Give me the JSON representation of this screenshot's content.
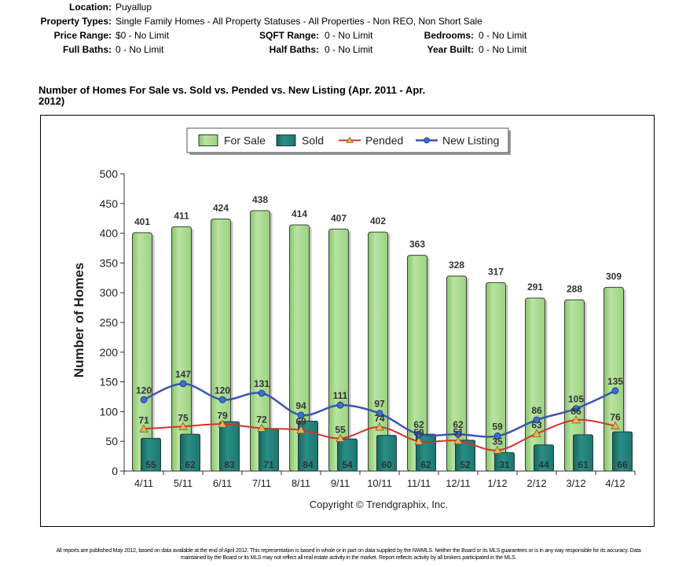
{
  "criteria": {
    "location": {
      "label": "Location:",
      "value": "Puyallup"
    },
    "property_types": {
      "label": "Property Types:",
      "value": "Single Family Homes - All Property Statuses - All Properties - Non REO, Non Short Sale"
    },
    "price_range": {
      "label": "Price Range:",
      "value": "$0 - No Limit"
    },
    "sqft_range": {
      "label": "SQFT Range:",
      "value": "0 - No Limit"
    },
    "bedrooms": {
      "label": "Bedrooms:",
      "value": "0 - No Limit"
    },
    "full_baths": {
      "label": "Full Baths:",
      "value": "0 - No Limit"
    },
    "half_baths": {
      "label": "Half Baths:",
      "value": "0 - No Limit"
    },
    "year_built": {
      "label": "Year Built:",
      "value": "0 - No Limit"
    }
  },
  "chart_data": {
    "type": "bar",
    "title_line1": "Number of Homes For Sale vs. Sold vs. Pended vs. New Listing (Apr. 2011 - Apr.",
    "title_line2": "2012)",
    "ylabel": "Number of Homes",
    "xlabel": "",
    "ylim": [
      0,
      500
    ],
    "yticks": [
      0,
      50,
      100,
      150,
      200,
      250,
      300,
      350,
      400,
      450,
      500
    ],
    "categories": [
      "4/11",
      "5/11",
      "6/11",
      "7/11",
      "8/11",
      "9/11",
      "10/11",
      "11/11",
      "12/11",
      "1/12",
      "2/12",
      "3/12",
      "4/12"
    ],
    "legend_position": "top-center",
    "grid": false,
    "series": [
      {
        "name": "For Sale",
        "kind": "bar",
        "color": "#a8d990",
        "values": [
          401,
          411,
          424,
          438,
          414,
          407,
          402,
          363,
          328,
          317,
          291,
          288,
          309
        ]
      },
      {
        "name": "Sold",
        "kind": "bar",
        "color": "#1f7f78",
        "values": [
          55,
          62,
          83,
          71,
          84,
          54,
          60,
          62,
          52,
          31,
          44,
          61,
          66
        ]
      },
      {
        "name": "Pended",
        "kind": "line",
        "color": "#d2332b",
        "marker_color": "#e6b45a",
        "values": [
          71,
          75,
          79,
          72,
          69,
          55,
          74,
          50,
          51,
          35,
          63,
          86,
          76
        ]
      },
      {
        "name": "New Listing",
        "kind": "line",
        "color": "#3a55b0",
        "marker_color": "#3a6fd8",
        "values": [
          120,
          147,
          120,
          131,
          94,
          111,
          97,
          62,
          62,
          59,
          86,
          105,
          135
        ]
      }
    ],
    "copyright": "Copyright © Trendgraphix, Inc."
  },
  "footnote": {
    "line1": "All reports are published May 2012, based on data available at the end of April 2012. This representation is based in whole or in part on data supplied by the NWMLS. Neither the Board or its MLS guarantees or is in any way responsible for its accuracy. Data",
    "line2": "maintained by the Board or its MLS may not reflect all real estate activity in the market. Report reflects activity by all brokers participated in the MLS."
  }
}
